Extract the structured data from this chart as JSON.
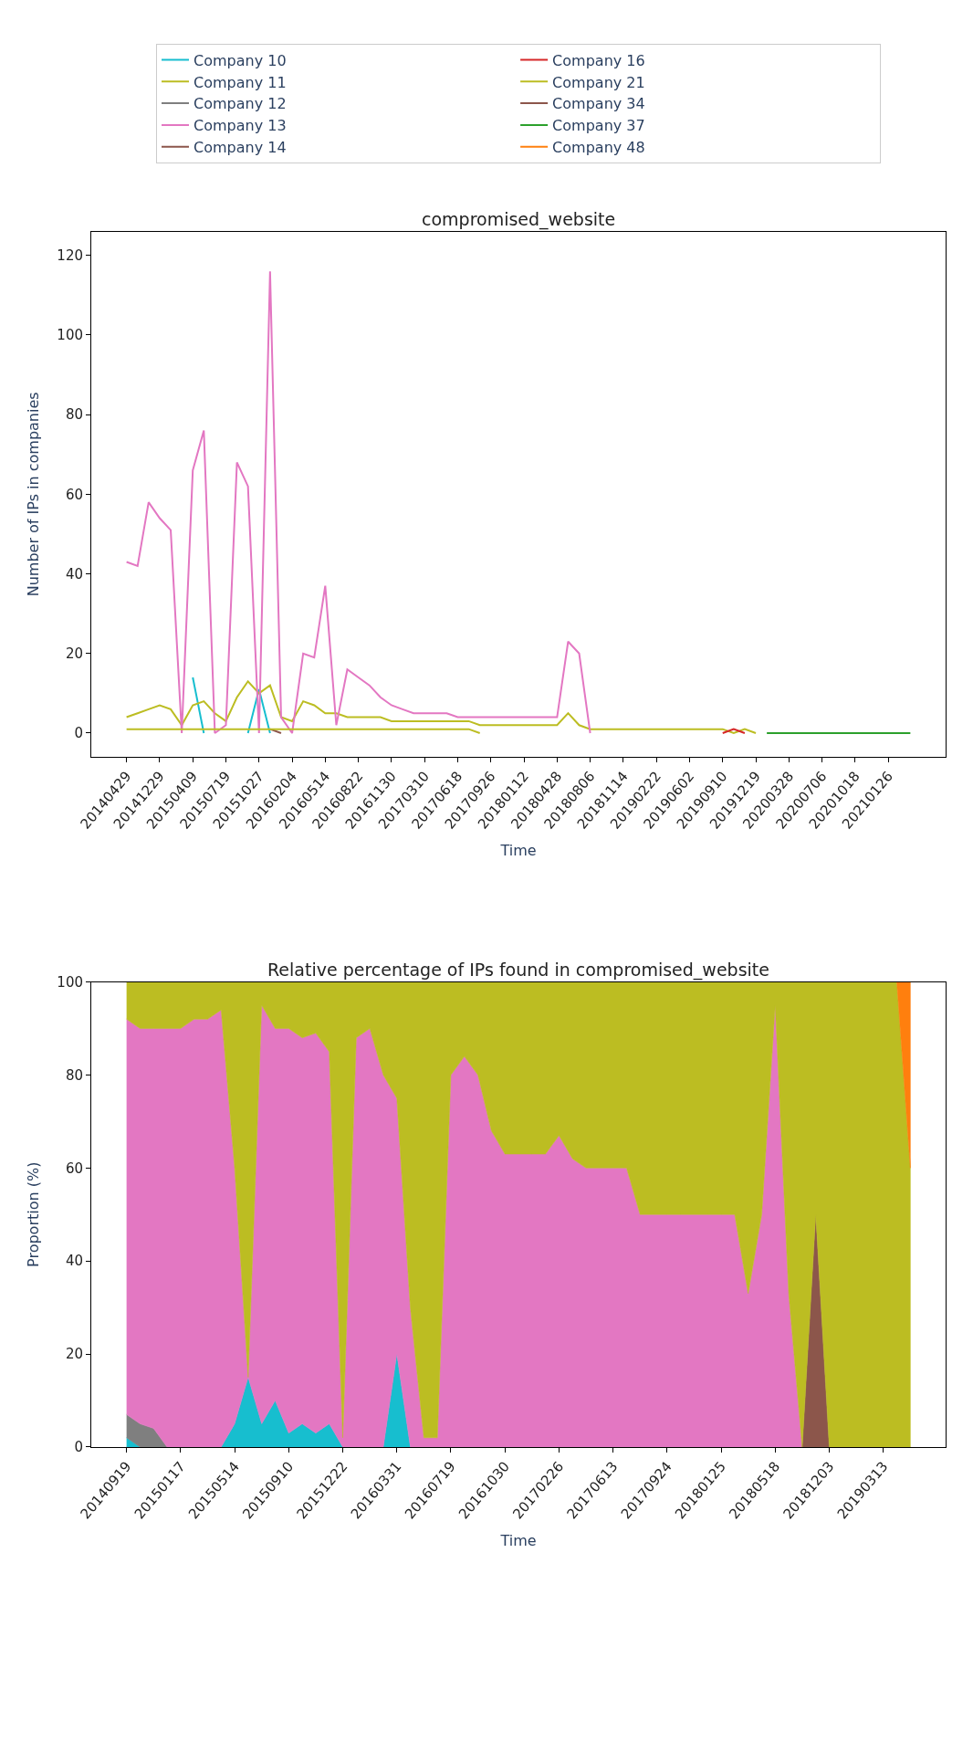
{
  "chart_data": [
    {
      "type": "line",
      "title": "compromised_website",
      "xlabel": "Time",
      "ylabel": "Number of IPs in companies",
      "legend": "top",
      "grid": false,
      "categories": [
        "20140429",
        null,
        null,
        "20141229",
        null,
        null,
        "20150409",
        null,
        null,
        "20150719",
        null,
        null,
        "20151027",
        null,
        null,
        "20160204",
        null,
        null,
        "20160514",
        null,
        null,
        "20160822",
        null,
        null,
        "20161130",
        null,
        null,
        "20170310",
        null,
        null,
        "20170618",
        null,
        null,
        "20170926",
        null,
        null,
        "20180112",
        null,
        null,
        "20180428",
        null,
        null,
        "20180806",
        null,
        null,
        "20181114",
        null,
        null,
        "20190222",
        null,
        null,
        "20190602",
        null,
        null,
        "20190910",
        null,
        null,
        "20191219",
        null,
        null,
        "20200328",
        null,
        null,
        "20200706",
        null,
        null,
        "20201018",
        null,
        null,
        "20210126",
        null,
        null
      ],
      "ylim": [
        -6,
        126
      ],
      "yticks": [
        0,
        20,
        40,
        60,
        80,
        100,
        120
      ],
      "series": [
        {
          "name": "Company 10",
          "color": "#17becf",
          "values": [
            null,
            null,
            null,
            null,
            null,
            null,
            14,
            0,
            null,
            null,
            null,
            0,
            11,
            0,
            null,
            null,
            null,
            null,
            null,
            null,
            null,
            null,
            null,
            null,
            null,
            null,
            null,
            null,
            null,
            null,
            null,
            null,
            null,
            null,
            null,
            null,
            null,
            null,
            null,
            null,
            null,
            null,
            null,
            null,
            null,
            null,
            null,
            null,
            null,
            null,
            null,
            null,
            null,
            null,
            null,
            null,
            null,
            null,
            null,
            null,
            null,
            null,
            null,
            null,
            null,
            null,
            null,
            null,
            null,
            null,
            null,
            null
          ]
        },
        {
          "name": "Company 11",
          "color": "#bcbd22",
          "values": [
            4,
            5,
            6,
            7,
            6,
            2,
            7,
            8,
            5,
            3,
            9,
            13,
            10,
            12,
            4,
            3,
            8,
            7,
            5,
            5,
            4,
            4,
            4,
            4,
            3,
            3,
            3,
            3,
            3,
            3,
            3,
            3,
            2,
            2,
            2,
            2,
            2,
            2,
            2,
            2,
            5,
            2,
            1,
            1,
            1,
            1,
            1,
            1,
            1,
            1,
            1,
            1,
            1,
            1,
            1,
            0,
            1,
            0,
            null,
            null,
            null,
            null,
            null,
            null,
            null,
            null,
            null,
            null,
            null,
            null,
            null,
            null
          ]
        },
        {
          "name": "Company 12",
          "color": "#7f7f7f",
          "values": [
            null,
            null,
            null,
            null,
            null,
            null,
            null,
            null,
            null,
            null,
            null,
            null,
            null,
            null,
            null,
            null,
            null,
            null,
            null,
            null,
            null,
            null,
            null,
            null,
            null,
            null,
            null,
            null,
            null,
            null,
            null,
            null,
            null,
            null,
            null,
            null,
            null,
            null,
            null,
            null,
            null,
            null,
            null,
            null,
            null,
            null,
            null,
            null,
            null,
            null,
            null,
            null,
            null,
            null,
            null,
            null,
            null,
            null,
            null,
            null,
            null,
            null,
            null,
            null,
            null,
            null,
            null,
            null,
            null,
            null,
            null,
            null
          ]
        },
        {
          "name": "Company 13",
          "color": "#e377c2",
          "values": [
            43,
            42,
            58,
            54,
            51,
            0,
            66,
            76,
            0,
            2,
            68,
            62,
            0,
            116,
            4,
            0,
            20,
            19,
            37,
            2,
            16,
            14,
            12,
            9,
            7,
            6,
            5,
            5,
            5,
            5,
            4,
            4,
            4,
            4,
            4,
            4,
            4,
            4,
            4,
            4,
            23,
            20,
            0,
            null,
            null,
            null,
            null,
            null,
            null,
            null,
            null,
            null,
            null,
            null,
            null,
            null,
            null,
            null,
            null,
            null,
            null,
            null,
            null,
            null,
            null,
            null,
            null,
            null,
            null,
            null,
            null,
            null
          ]
        },
        {
          "name": "Company 14",
          "color": "#8c564b",
          "values": [
            null,
            null,
            null,
            null,
            null,
            null,
            null,
            null,
            null,
            null,
            null,
            null,
            null,
            1,
            0,
            null,
            null,
            null,
            null,
            null,
            null,
            null,
            null,
            null,
            null,
            null,
            null,
            null,
            null,
            null,
            null,
            null,
            null,
            null,
            null,
            null,
            null,
            null,
            null,
            null,
            null,
            null,
            null,
            null,
            null,
            null,
            null,
            null,
            null,
            null,
            null,
            null,
            null,
            null,
            null,
            null,
            null,
            null,
            null,
            null,
            null,
            null,
            null,
            null,
            null,
            null,
            null,
            null,
            null,
            null,
            null,
            null
          ]
        },
        {
          "name": "Company 16",
          "color": "#d62728",
          "values": [
            null,
            null,
            null,
            null,
            null,
            null,
            null,
            null,
            null,
            null,
            null,
            null,
            null,
            null,
            null,
            null,
            null,
            null,
            null,
            null,
            null,
            null,
            null,
            null,
            null,
            null,
            null,
            null,
            null,
            null,
            null,
            null,
            null,
            null,
            null,
            null,
            null,
            null,
            null,
            null,
            null,
            null,
            null,
            null,
            null,
            null,
            null,
            null,
            null,
            null,
            null,
            null,
            null,
            null,
            0,
            1,
            0,
            null,
            null,
            null,
            null,
            null,
            null,
            null,
            null,
            null,
            null,
            null,
            null,
            null,
            null,
            null
          ]
        },
        {
          "name": "Company 21",
          "color": "#bcbd22",
          "values": [
            1,
            1,
            1,
            1,
            1,
            1,
            1,
            1,
            1,
            1,
            1,
            1,
            1,
            1,
            1,
            1,
            1,
            1,
            1,
            1,
            1,
            1,
            1,
            1,
            1,
            1,
            1,
            1,
            1,
            1,
            1,
            1,
            0,
            null,
            null,
            null,
            null,
            null,
            null,
            null,
            null,
            null,
            null,
            null,
            null,
            null,
            null,
            null,
            null,
            null,
            null,
            null,
            null,
            null,
            null,
            null,
            null,
            null,
            null,
            null,
            null,
            null,
            null,
            null,
            null,
            null,
            null,
            null,
            null,
            null,
            null,
            null
          ]
        },
        {
          "name": "Company 34",
          "color": "#8c564b",
          "values": [
            null,
            null,
            null,
            null,
            null,
            null,
            null,
            null,
            null,
            null,
            null,
            null,
            null,
            null,
            null,
            null,
            null,
            null,
            null,
            null,
            null,
            null,
            null,
            null,
            null,
            null,
            null,
            null,
            null,
            null,
            null,
            null,
            null,
            null,
            null,
            null,
            null,
            null,
            null,
            null,
            null,
            null,
            null,
            null,
            null,
            null,
            null,
            null,
            null,
            null,
            null,
            null,
            null,
            null,
            null,
            null,
            null,
            null,
            null,
            null,
            null,
            null,
            null,
            null,
            null,
            null,
            null,
            null,
            null,
            null,
            null,
            null
          ]
        },
        {
          "name": "Company 37",
          "color": "#2ca02c",
          "values": [
            null,
            null,
            null,
            null,
            null,
            null,
            null,
            null,
            null,
            null,
            null,
            null,
            null,
            null,
            null,
            null,
            null,
            null,
            null,
            null,
            null,
            null,
            null,
            null,
            null,
            null,
            null,
            null,
            null,
            null,
            null,
            null,
            null,
            null,
            null,
            null,
            null,
            null,
            null,
            null,
            null,
            null,
            null,
            null,
            null,
            null,
            null,
            null,
            null,
            null,
            null,
            null,
            null,
            null,
            null,
            null,
            null,
            null,
            0,
            0,
            0,
            0,
            0,
            0,
            0,
            0,
            0,
            0,
            0,
            0,
            0,
            0
          ]
        },
        {
          "name": "Company 48",
          "color": "#ff7f0e",
          "values": [
            null,
            null,
            null,
            null,
            null,
            null,
            null,
            null,
            null,
            null,
            null,
            null,
            null,
            null,
            null,
            null,
            null,
            null,
            null,
            null,
            null,
            null,
            null,
            null,
            null,
            null,
            null,
            null,
            null,
            null,
            null,
            null,
            null,
            null,
            null,
            null,
            null,
            null,
            null,
            null,
            null,
            null,
            null,
            null,
            null,
            null,
            null,
            null,
            null,
            null,
            null,
            null,
            null,
            null,
            null,
            null,
            null,
            null,
            null,
            null,
            null,
            null,
            null,
            null,
            null,
            null,
            null,
            null,
            null,
            null,
            null,
            null
          ]
        }
      ]
    },
    {
      "type": "area",
      "stacked": true,
      "title": "Relative percentage of IPs found in compromised_website",
      "xlabel": "Time",
      "ylabel": "Proportion (%)",
      "grid": false,
      "categories": [
        "20140919",
        null,
        null,
        null,
        "20150117",
        null,
        null,
        null,
        "20150514",
        null,
        null,
        null,
        "20150910",
        null,
        null,
        null,
        "20151222",
        null,
        null,
        null,
        "20160331",
        null,
        null,
        null,
        "20160719",
        null,
        null,
        null,
        "20161030",
        null,
        null,
        null,
        "20170226",
        null,
        null,
        null,
        "20170613",
        null,
        null,
        null,
        "20170924",
        null,
        null,
        null,
        "20180125",
        null,
        null,
        null,
        "20180518",
        null,
        null,
        null,
        "20181203",
        null,
        null,
        null,
        "20190313",
        null,
        null
      ],
      "ylim": [
        0,
        100
      ],
      "yticks": [
        0,
        20,
        40,
        60,
        80,
        100
      ],
      "series": [
        {
          "color": "#17becf",
          "values": [
            2,
            0,
            0,
            0,
            0,
            0,
            0,
            0,
            5,
            15,
            5,
            10,
            3,
            5,
            3,
            5,
            0,
            0,
            0,
            0,
            20,
            0,
            null,
            null,
            null,
            null,
            null,
            null,
            null,
            null,
            null,
            null,
            null,
            null,
            null,
            null,
            null,
            null,
            null,
            null,
            null,
            null,
            null,
            null,
            null,
            null,
            null,
            null,
            null,
            null,
            null,
            null,
            null,
            null,
            null,
            null,
            null,
            null,
            null
          ]
        },
        {
          "color": "#7f7f7f",
          "values": [
            5,
            5,
            4,
            0,
            null,
            null,
            null,
            null,
            null,
            null,
            null,
            null,
            null,
            null,
            null,
            null,
            null,
            null,
            null,
            null,
            null,
            null,
            null,
            null,
            null,
            null,
            null,
            null,
            null,
            null,
            null,
            null,
            null,
            null,
            null,
            null,
            null,
            null,
            null,
            null,
            null,
            null,
            null,
            null,
            null,
            null,
            null,
            null,
            null,
            null,
            null,
            null,
            null,
            null,
            null,
            null,
            null,
            null,
            null
          ]
        },
        {
          "color": "#e377c2",
          "values": [
            85,
            85,
            86,
            90,
            90,
            92,
            92,
            94,
            55,
            0,
            90,
            80,
            87,
            83,
            86,
            80,
            2,
            88,
            90,
            80,
            55,
            30,
            2,
            2,
            80,
            84,
            80,
            68,
            63,
            63,
            63,
            63,
            67,
            62,
            60,
            60,
            60,
            60,
            50,
            50,
            50,
            50,
            50,
            50,
            50,
            50,
            33,
            50,
            95,
            33,
            0,
            null,
            null,
            null,
            null,
            null,
            null,
            null,
            null
          ]
        },
        {
          "color": "#8c564b",
          "values": [
            null,
            null,
            null,
            null,
            null,
            null,
            null,
            null,
            null,
            null,
            null,
            null,
            null,
            null,
            null,
            null,
            null,
            null,
            null,
            null,
            null,
            null,
            null,
            null,
            null,
            null,
            null,
            null,
            null,
            null,
            null,
            null,
            null,
            null,
            null,
            null,
            null,
            null,
            null,
            null,
            null,
            null,
            null,
            null,
            null,
            null,
            null,
            null,
            null,
            null,
            0,
            50,
            0,
            null,
            null,
            null,
            null,
            null,
            null
          ]
        },
        {
          "color": "#bcbd22",
          "values": [
            8,
            10,
            10,
            10,
            10,
            8,
            8,
            6,
            40,
            85,
            5,
            10,
            10,
            12,
            11,
            15,
            98,
            12,
            10,
            20,
            25,
            70,
            98,
            98,
            20,
            16,
            20,
            32,
            37,
            37,
            37,
            37,
            33,
            38,
            40,
            40,
            40,
            40,
            50,
            50,
            50,
            50,
            50,
            50,
            50,
            50,
            67,
            50,
            5,
            67,
            100,
            50,
            100,
            100,
            100,
            100,
            100,
            100,
            60
          ]
        },
        {
          "color": "#ff7f0e",
          "values": [
            null,
            null,
            null,
            null,
            null,
            null,
            null,
            null,
            null,
            null,
            null,
            null,
            null,
            null,
            null,
            null,
            null,
            null,
            null,
            null,
            null,
            null,
            null,
            null,
            null,
            null,
            null,
            null,
            null,
            null,
            null,
            null,
            null,
            null,
            null,
            null,
            null,
            null,
            null,
            null,
            null,
            null,
            null,
            null,
            null,
            null,
            null,
            null,
            null,
            null,
            null,
            null,
            null,
            null,
            null,
            null,
            null,
            0,
            40
          ]
        }
      ]
    }
  ]
}
